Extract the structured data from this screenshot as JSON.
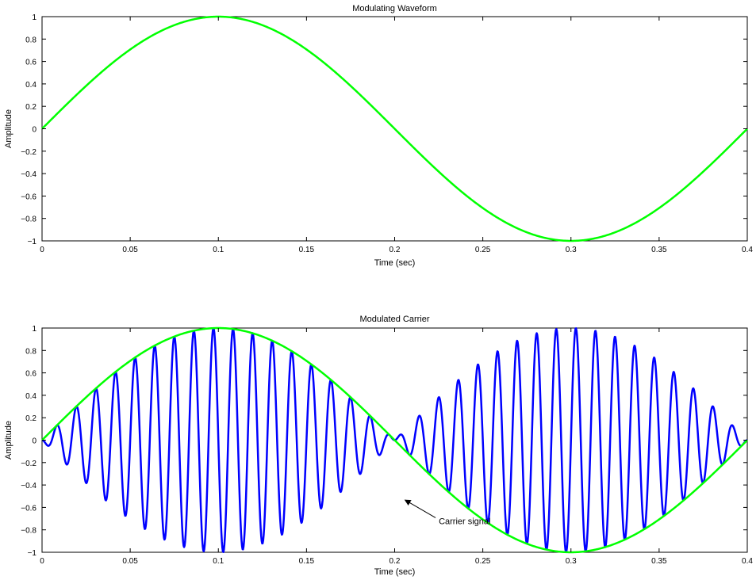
{
  "chart_data": [
    {
      "type": "line",
      "title": "Modulating Waveform",
      "xlabel": "Time (sec)",
      "ylabel": "Amplitude",
      "xlim": [
        0,
        0.4
      ],
      "ylim": [
        -1,
        1
      ],
      "xticks": [
        0,
        0.05,
        0.1,
        0.15,
        0.2,
        0.25,
        0.3,
        0.35,
        0.4
      ],
      "xtick_labels": [
        "0",
        "0.05",
        "0.1",
        "0.15",
        "0.2",
        "0.25",
        "0.3",
        "0.35",
        "0.4"
      ],
      "yticks": [
        -1,
        -0.8,
        -0.6,
        -0.4,
        -0.2,
        0,
        0.2,
        0.4,
        0.6,
        0.8,
        1
      ],
      "ytick_labels": [
        "−1",
        "−0.8",
        "−0.6",
        "−0.4",
        "−0.2",
        "0",
        "0.2",
        "0.4",
        "0.6",
        "0.8",
        "1"
      ],
      "grid": false,
      "series": [
        {
          "color": "#00ff00",
          "x": [
            0,
            0.025,
            0.05,
            0.075,
            0.1,
            0.125,
            0.15,
            0.175,
            0.2,
            0.225,
            0.25,
            0.275,
            0.3,
            0.325,
            0.35,
            0.375,
            0.4
          ],
          "y": [
            0,
            0.383,
            0.707,
            0.924,
            1,
            0.924,
            0.707,
            0.383,
            0,
            -0.383,
            -0.707,
            -0.924,
            -1,
            -0.924,
            -0.707,
            -0.383,
            0
          ]
        }
      ]
    },
    {
      "type": "line",
      "title": "Modulated Carrier",
      "xlabel": "Time (sec)",
      "ylabel": "Amplitude",
      "xlim": [
        0,
        0.4
      ],
      "ylim": [
        -1,
        1
      ],
      "xticks": [
        0,
        0.05,
        0.1,
        0.15,
        0.2,
        0.25,
        0.3,
        0.35,
        0.4
      ],
      "xtick_labels": [
        "0",
        "0.05",
        "0.1",
        "0.15",
        "0.2",
        "0.25",
        "0.3",
        "0.35",
        "0.4"
      ],
      "yticks": [
        -1,
        -0.8,
        -0.6,
        -0.4,
        -0.2,
        0,
        0.2,
        0.4,
        0.6,
        0.8,
        1
      ],
      "ytick_labels": [
        "−1",
        "−0.8",
        "−0.6",
        "−0.4",
        "−0.2",
        "0",
        "0.2",
        "0.4",
        "0.6",
        "0.8",
        "1"
      ],
      "grid": false,
      "series": [
        {
          "color": "#0000ff",
          "x": [
            0,
            0.01,
            0.02,
            0.03,
            0.04,
            0.05,
            0.06,
            0.07,
            0.08,
            0.09,
            0.1,
            0.11,
            0.12,
            0.13,
            0.14,
            0.15,
            0.16,
            0.17,
            0.18,
            0.19,
            0.2,
            0.21,
            0.22,
            0.23,
            0.24,
            0.25,
            0.26,
            0.27,
            0.28,
            0.29,
            0.3,
            0.31,
            0.32,
            0.33,
            0.34,
            0.35,
            0.36,
            0.37,
            0.38,
            0.39,
            0.4
          ],
          "y": [
            0,
            0.156,
            0.309,
            0.454,
            0.588,
            0.707,
            0.809,
            0.891,
            0.951,
            0.988,
            1,
            0.988,
            0.951,
            0.891,
            0.809,
            0.707,
            0.588,
            0.454,
            0.309,
            0.156,
            0,
            -0.156,
            -0.309,
            -0.454,
            -0.588,
            -0.707,
            -0.809,
            -0.891,
            -0.951,
            -0.988,
            -1,
            -0.988,
            -0.951,
            -0.891,
            -0.809,
            -0.707,
            -0.588,
            -0.454,
            -0.309,
            -0.156,
            0
          ]
        },
        {
          "color": "#00ff00",
          "x": [
            0,
            0.025,
            0.05,
            0.075,
            0.1,
            0.125,
            0.15,
            0.175,
            0.2,
            0.225,
            0.25,
            0.275,
            0.3,
            0.325,
            0.35,
            0.375,
            0.4
          ],
          "y": [
            0,
            0.383,
            0.707,
            0.924,
            1,
            0.924,
            0.707,
            0.383,
            0,
            -0.383,
            -0.707,
            -0.924,
            -1,
            -0.924,
            -0.707,
            -0.383,
            0
          ]
        }
      ],
      "annotation": {
        "text": "Carrier signal",
        "target": [
          0.205,
          -0.52
        ],
        "label_at": [
          0.225,
          -0.72
        ]
      }
    }
  ]
}
